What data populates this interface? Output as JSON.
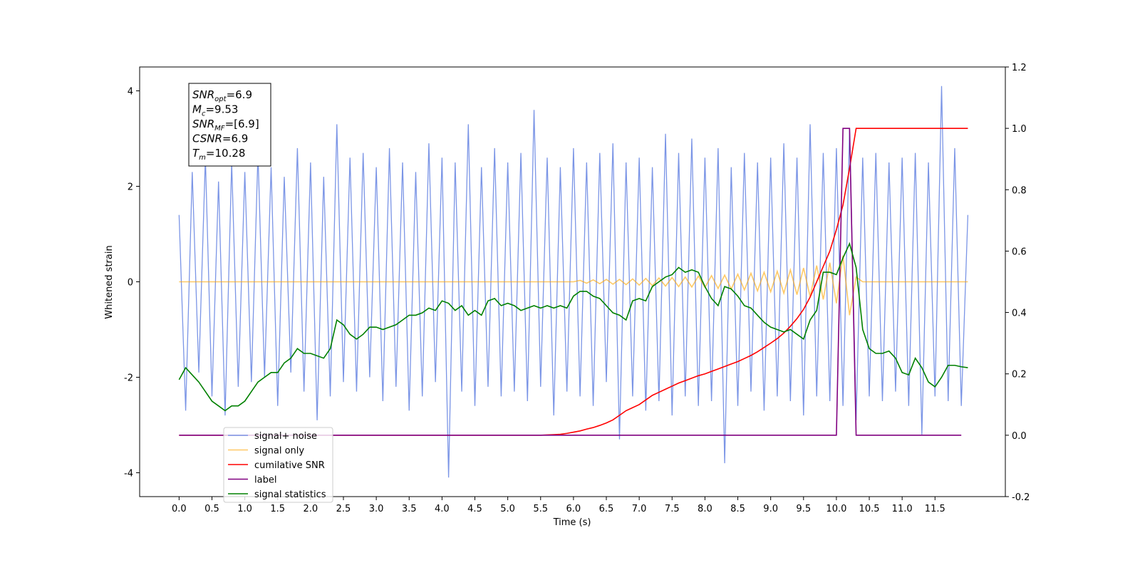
{
  "chart_data": {
    "type": "line",
    "xlabel": "Time (s)",
    "ylabel": "Whitened strain",
    "xlim": [
      -0.6,
      12.57
    ],
    "ylim": [
      -4.5,
      4.5
    ],
    "y2lim": [
      -0.2,
      1.2
    ],
    "xticks": [
      {
        "value": 0,
        "label": "0.0"
      },
      {
        "value": 0.5,
        "label": "0.5"
      },
      {
        "value": 1,
        "label": "1.0"
      },
      {
        "value": 1.5,
        "label": "1.5"
      },
      {
        "value": 2,
        "label": "2.0"
      },
      {
        "value": 2.5,
        "label": "2.5"
      },
      {
        "value": 3,
        "label": "3.0"
      },
      {
        "value": 3.5,
        "label": "3.5"
      },
      {
        "value": 4,
        "label": "4.0"
      },
      {
        "value": 4.5,
        "label": "4.5"
      },
      {
        "value": 5,
        "label": "5.0"
      },
      {
        "value": 5.5,
        "label": "5.5"
      },
      {
        "value": 6,
        "label": "6.0"
      },
      {
        "value": 6.5,
        "label": "6.5"
      },
      {
        "value": 7,
        "label": "7.0"
      },
      {
        "value": 7.5,
        "label": "7.5"
      },
      {
        "value": 8,
        "label": "8.0"
      },
      {
        "value": 8.5,
        "label": "8.5"
      },
      {
        "value": 9,
        "label": "9.0"
      },
      {
        "value": 9.5,
        "label": "9.5"
      },
      {
        "value": 10,
        "label": "10.0"
      },
      {
        "value": 10.5,
        "label": "10.5"
      },
      {
        "value": 11,
        "label": "11.0"
      },
      {
        "value": 11.5,
        "label": "11.5"
      }
    ],
    "yticks": [
      -4,
      -2,
      0,
      2,
      4
    ],
    "y2ticks": [
      -0.2,
      {
        "value": 0,
        "label": "0.0"
      },
      0.2,
      0.4,
      0.6,
      0.8,
      {
        "value": 1,
        "label": "1.0"
      },
      1.2
    ],
    "legend": "lower left",
    "annotation": [
      {
        "base": "SNR",
        "sub": "opt",
        "rest": "=6.9"
      },
      {
        "base": "M",
        "sub": "c",
        "rest": "=9.53"
      },
      {
        "base": "SNR",
        "sub": "MF",
        "rest": "=[6.9]"
      },
      {
        "base": "CSNR",
        "sub": null,
        "rest": "=6.9"
      },
      {
        "base": "T",
        "sub": "m",
        "rest": "=10.28"
      }
    ],
    "x": [
      0,
      0.1,
      0.2,
      0.3,
      0.4,
      0.5,
      0.6,
      0.7,
      0.8,
      0.9,
      1,
      1.1,
      1.2,
      1.3,
      1.4,
      1.5,
      1.6,
      1.7,
      1.8,
      1.9,
      2,
      2.1,
      2.2,
      2.3,
      2.4,
      2.5,
      2.6,
      2.7,
      2.8,
      2.9,
      3,
      3.1,
      3.2,
      3.3,
      3.4,
      3.5,
      3.6,
      3.7,
      3.8,
      3.9,
      4,
      4.1,
      4.2,
      4.3,
      4.4,
      4.5,
      4.6,
      4.7,
      4.8,
      4.9,
      5,
      5.1,
      5.2,
      5.3,
      5.4,
      5.5,
      5.6,
      5.7,
      5.8,
      5.9,
      6,
      6.1,
      6.2,
      6.3,
      6.4,
      6.5,
      6.6,
      6.7,
      6.8,
      6.9,
      7,
      7.1,
      7.2,
      7.3,
      7.4,
      7.5,
      7.6,
      7.7,
      7.8,
      7.9,
      8,
      8.1,
      8.2,
      8.3,
      8.4,
      8.5,
      8.6,
      8.7,
      8.8,
      8.9,
      9,
      9.1,
      9.2,
      9.3,
      9.4,
      9.5,
      9.6,
      9.7,
      9.8,
      9.9,
      10,
      10.1,
      10.2,
      10.3,
      10.4,
      10.5,
      10.6,
      10.7,
      10.8,
      10.9,
      11,
      11.1,
      11.2,
      11.3,
      11.4,
      11.5,
      11.6,
      11.7,
      11.8,
      11.9,
      12
    ],
    "series": [
      {
        "name": "signal+ noise",
        "color": "#7b95e6",
        "values": [
          1.4,
          -2.7,
          2.3,
          -1.9,
          2.6,
          -2.4,
          2.1,
          -2.8,
          2.5,
          -2.2,
          2.3,
          -2.1,
          2.7,
          -2.0,
          2.4,
          -2.6,
          2.2,
          -1.9,
          2.8,
          -2.3,
          2.5,
          -2.9,
          2.2,
          -2.4,
          3.3,
          -2.1,
          2.6,
          -2.3,
          2.7,
          -2.0,
          2.4,
          -2.5,
          2.8,
          -2.2,
          2.5,
          -2.7,
          2.3,
          -2.4,
          2.9,
          -2.1,
          2.6,
          -4.1,
          2.5,
          -2.3,
          3.3,
          -2.6,
          2.4,
          -2.2,
          2.8,
          -2.4,
          2.5,
          -2.3,
          2.7,
          -2.5,
          3.6,
          -2.2,
          2.6,
          -2.8,
          2.4,
          -2.3,
          2.8,
          -2.4,
          2.5,
          -2.6,
          2.7,
          -2.1,
          2.9,
          -3.3,
          2.5,
          -2.4,
          2.6,
          -2.7,
          2.4,
          -2.5,
          3.1,
          -2.8,
          2.7,
          -2.4,
          3.0,
          -2.6,
          2.6,
          -2.5,
          2.8,
          -3.8,
          2.4,
          -2.6,
          2.7,
          -2.3,
          2.5,
          -2.7,
          2.6,
          -2.4,
          2.9,
          -2.5,
          2.6,
          -2.8,
          3.3,
          -2.4,
          2.7,
          -2.5,
          2.8,
          -2.6,
          3.2,
          -2.9,
          2.6,
          -2.4,
          2.7,
          -2.5,
          2.5,
          -2.3,
          2.6,
          -2.6,
          2.7,
          -3.2,
          2.5,
          -2.4,
          4.1,
          -2.5,
          2.8,
          -2.6,
          1.4
        ]
      },
      {
        "name": "signal only",
        "color": "#ffa500",
        "values": [
          0,
          0,
          0,
          0,
          0,
          0,
          0,
          0,
          0,
          0,
          0,
          0,
          0,
          0,
          0,
          0,
          0,
          0,
          0,
          0,
          0,
          0,
          0,
          0,
          0,
          0,
          0,
          0,
          0,
          0,
          0,
          0,
          0,
          0,
          0,
          0,
          0,
          0,
          0,
          0,
          0,
          0,
          0,
          0,
          0,
          0,
          0,
          0,
          0,
          0,
          0,
          0,
          0,
          0,
          0,
          0,
          0,
          0,
          0,
          0,
          0,
          0.03,
          -0.03,
          0.04,
          -0.04,
          0.05,
          -0.05,
          0.05,
          -0.06,
          0.06,
          -0.07,
          0.07,
          -0.08,
          0.08,
          -0.09,
          0.09,
          -0.1,
          0.1,
          -0.11,
          0.12,
          -0.12,
          0.13,
          -0.14,
          0.14,
          -0.15,
          0.16,
          -0.17,
          0.18,
          -0.19,
          0.2,
          -0.21,
          0.22,
          -0.24,
          0.25,
          -0.27,
          0.29,
          -0.31,
          0.34,
          -0.37,
          0.4,
          -0.45,
          0.55,
          -0.7,
          0.1,
          0,
          0,
          0,
          0,
          0,
          0,
          0,
          0,
          0,
          0,
          0,
          0,
          0,
          0,
          0,
          0,
          0
        ]
      },
      {
        "name": "cumilative SNR",
        "color": "#ff0000",
        "axis": "y2",
        "values": [
          0,
          0,
          0,
          0,
          0,
          0,
          0,
          0,
          0,
          0,
          0,
          0,
          0,
          0,
          0,
          0,
          0,
          0,
          0,
          0,
          0,
          0,
          0,
          0,
          0,
          0,
          0,
          0,
          0,
          0,
          0,
          0,
          0,
          0,
          0,
          0,
          0,
          0,
          0,
          0,
          0,
          0,
          0,
          0,
          0,
          0,
          0,
          0,
          0,
          0,
          0,
          0,
          0,
          0,
          0,
          0,
          0.001,
          0.002,
          0.003,
          0.006,
          0.01,
          0.014,
          0.02,
          0.025,
          0.032,
          0.04,
          0.05,
          0.065,
          0.08,
          0.09,
          0.1,
          0.115,
          0.13,
          0.14,
          0.15,
          0.16,
          0.17,
          0.178,
          0.186,
          0.194,
          0.2,
          0.208,
          0.216,
          0.224,
          0.232,
          0.24,
          0.25,
          0.26,
          0.272,
          0.286,
          0.3,
          0.315,
          0.333,
          0.355,
          0.38,
          0.41,
          0.45,
          0.5,
          0.55,
          0.6,
          0.67,
          0.75,
          0.87,
          1.0,
          1,
          1,
          1,
          1,
          1,
          1,
          1,
          1,
          1,
          1,
          1,
          1,
          1,
          1,
          1,
          1,
          1
        ]
      },
      {
        "name": "label",
        "color": "#800080",
        "axis": "y2",
        "values": [
          0,
          0,
          0,
          0,
          0,
          0,
          0,
          0,
          0,
          0,
          0,
          0,
          0,
          0,
          0,
          0,
          0,
          0,
          0,
          0,
          0,
          0,
          0,
          0,
          0,
          0,
          0,
          0,
          0,
          0,
          0,
          0,
          0,
          0,
          0,
          0,
          0,
          0,
          0,
          0,
          0,
          0,
          0,
          0,
          0,
          0,
          0,
          0,
          0,
          0,
          0,
          0,
          0,
          0,
          0,
          0,
          0,
          0,
          0,
          0,
          0,
          0,
          0,
          0,
          0,
          0,
          0,
          0,
          0,
          0,
          0,
          0,
          0,
          0,
          0,
          0,
          0,
          0,
          0,
          0,
          0,
          0,
          0,
          0,
          0,
          0,
          0,
          0,
          0,
          0,
          0,
          0,
          0,
          0,
          0,
          0,
          0,
          0,
          0,
          0,
          0,
          1,
          1,
          0,
          0,
          0,
          0,
          0,
          0,
          0,
          0,
          0,
          0,
          0,
          0,
          0,
          0,
          0,
          0,
          0,
          null
        ]
      },
      {
        "name": "signal statistics",
        "color": "#008000",
        "values": [
          -2.05,
          -1.8,
          -1.95,
          -2.1,
          -2.3,
          -2.5,
          -2.6,
          -2.7,
          -2.6,
          -2.6,
          -2.5,
          -2.3,
          -2.1,
          -2.0,
          -1.9,
          -1.9,
          -1.7,
          -1.6,
          -1.4,
          -1.5,
          -1.5,
          -1.55,
          -1.6,
          -1.4,
          -0.8,
          -0.9,
          -1.1,
          -1.2,
          -1.1,
          -0.95,
          -0.95,
          -1.0,
          -0.95,
          -0.9,
          -0.8,
          -0.7,
          -0.7,
          -0.65,
          -0.55,
          -0.6,
          -0.4,
          -0.45,
          -0.6,
          -0.5,
          -0.7,
          -0.6,
          -0.7,
          -0.4,
          -0.35,
          -0.5,
          -0.45,
          -0.5,
          -0.6,
          -0.55,
          -0.5,
          -0.55,
          -0.5,
          -0.55,
          -0.5,
          -0.55,
          -0.3,
          -0.2,
          -0.2,
          -0.3,
          -0.35,
          -0.5,
          -0.65,
          -0.7,
          -0.8,
          -0.4,
          -0.35,
          -0.4,
          -0.1,
          0.0,
          0.1,
          0.15,
          0.3,
          0.2,
          0.25,
          0.2,
          -0.1,
          -0.35,
          -0.5,
          -0.1,
          -0.15,
          -0.3,
          -0.5,
          -0.55,
          -0.7,
          -0.85,
          -0.95,
          -1.0,
          -1.05,
          -1.0,
          -1.1,
          -1.2,
          -0.8,
          -0.6,
          0.2,
          0.2,
          0.15,
          0.5,
          0.8,
          0.3,
          -1.0,
          -1.4,
          -1.5,
          -1.5,
          -1.45,
          -1.6,
          -1.9,
          -1.95,
          -1.6,
          -1.8,
          -2.1,
          -2.2,
          -2.0,
          -1.75,
          -1.75,
          -1.78,
          -1.8
        ]
      }
    ]
  }
}
